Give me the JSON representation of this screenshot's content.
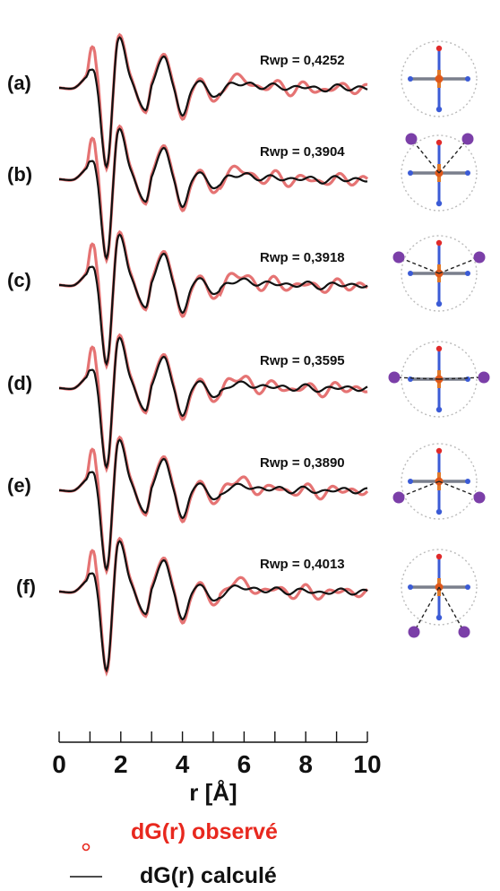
{
  "chart_data": {
    "type": "line",
    "xlabel": "r [Å]",
    "xlim": [
      0,
      10
    ],
    "x_ticks": [
      "0",
      "2",
      "4",
      "6",
      "8",
      "10"
    ],
    "grid": false,
    "legend_position": "bottom",
    "legend": {
      "observed": "dG(r) observé",
      "calculated": "dG(r) calculé"
    },
    "colors": {
      "observed": "#e05a5a",
      "calculated": "#111111",
      "legend_observed": "#e8281e",
      "atom_purple": "#7b3fa8"
    },
    "panels": [
      {
        "label": "(a)",
        "rwp": "Rwp = 0,4252",
        "structure_icon": "octahedral-complex-no-ligand-icon"
      },
      {
        "label": "(b)",
        "rwp": "Rwp = 0,3904",
        "structure_icon": "complex-two-upper-neighbors-icon"
      },
      {
        "label": "(c)",
        "rwp": "Rwp = 0,3918",
        "structure_icon": "complex-two-side-upper-neighbors-icon"
      },
      {
        "label": "(d)",
        "rwp": "Rwp = 0,3595",
        "structure_icon": "complex-two-equatorial-neighbors-icon"
      },
      {
        "label": "(e)",
        "rwp": "Rwp = 0,3890",
        "structure_icon": "complex-two-side-lower-neighbors-icon"
      },
      {
        "label": "(f)",
        "rwp": "Rwp = 0,4013",
        "structure_icon": "complex-two-lower-neighbors-icon"
      }
    ],
    "series": [
      {
        "name": "dG(r) observé",
        "x": [
          0.0,
          0.5,
          0.9,
          1.05,
          1.2,
          1.55,
          1.9,
          2.3,
          2.8,
          3.0,
          3.4,
          3.7,
          4.0,
          4.3,
          4.6,
          5.0,
          5.5,
          6.0,
          6.5,
          7.0,
          7.5,
          8.0,
          8.5,
          9.0,
          9.5,
          10.0
        ],
        "y": [
          0.0,
          0.0,
          0.3,
          0.9,
          0.5,
          -1.8,
          1.1,
          0.3,
          -0.55,
          0.1,
          0.75,
          0.1,
          -0.7,
          -0.1,
          0.2,
          -0.3,
          0.15,
          0.22,
          -0.05,
          0.12,
          -0.1,
          0.08,
          -0.12,
          0.06,
          -0.05,
          0.0
        ]
      },
      {
        "name": "dG(r) calculé",
        "x": [
          0.0,
          0.5,
          0.9,
          1.0,
          1.2,
          1.55,
          1.9,
          2.3,
          2.8,
          3.0,
          3.4,
          3.7,
          4.0,
          4.3,
          4.6,
          5.0,
          5.5,
          6.0,
          6.5,
          7.0,
          7.5,
          8.0,
          8.5,
          9.0,
          9.5,
          10.0
        ],
        "y": [
          0.0,
          0.0,
          0.25,
          0.4,
          0.15,
          -1.75,
          1.05,
          0.25,
          -0.5,
          0.05,
          0.7,
          0.05,
          -0.62,
          -0.05,
          0.15,
          -0.2,
          0.05,
          0.1,
          0.02,
          0.05,
          -0.02,
          0.04,
          -0.05,
          0.03,
          -0.02,
          0.0
        ]
      }
    ]
  }
}
